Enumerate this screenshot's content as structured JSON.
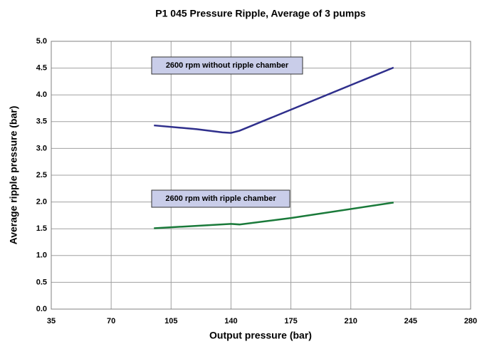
{
  "chart_data": {
    "type": "line",
    "title": "P1 045 Pressure Ripple, Average of 3 pumps",
    "xlabel": "Output pressure (bar)",
    "ylabel": "Average ripple pressure (bar)",
    "xlim": [
      35,
      280
    ],
    "xticks": [
      35,
      70,
      105,
      140,
      175,
      210,
      245,
      280
    ],
    "ylim": [
      0,
      5
    ],
    "yticks": [
      {
        "value": 0,
        "label": "0.0"
      },
      0.5,
      {
        "value": 1,
        "label": "1.0"
      },
      1.5,
      {
        "value": 2,
        "label": "2.0"
      },
      2.5,
      {
        "value": 3,
        "label": "3.0"
      },
      3.5,
      {
        "value": 4,
        "label": "4.0"
      },
      4.5,
      {
        "value": 5,
        "label": "5.0"
      }
    ],
    "grid": true,
    "series": [
      {
        "name": "2600 rpm without ripple chamber",
        "color": "#2f2f8c",
        "x": [
          95,
          120,
          135,
          140,
          145,
          235
        ],
        "values": [
          3.43,
          3.36,
          3.3,
          3.29,
          3.33,
          4.51
        ]
      },
      {
        "name": "2600 rpm with ripple chamber",
        "color": "#1a7a3a",
        "x": [
          95,
          140,
          145,
          175,
          235
        ],
        "values": [
          1.51,
          1.59,
          1.58,
          1.7,
          1.99
        ]
      }
    ]
  }
}
